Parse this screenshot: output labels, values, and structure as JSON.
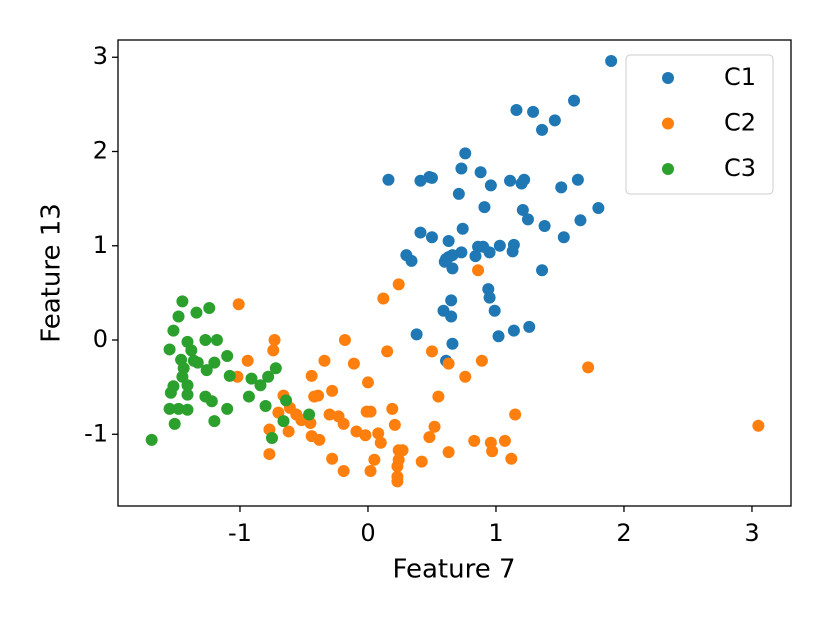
{
  "chart_data": {
    "type": "scatter",
    "x_label": "Feature 7",
    "y_label": "Feature 13",
    "xlim": [
      -1.953,
      3.305
    ],
    "ylim": [
      -1.761,
      3.183
    ],
    "xticks": [
      -1,
      0,
      1,
      2,
      3
    ],
    "yticks": [
      -1,
      0,
      1,
      2,
      3
    ],
    "legend": "upper right",
    "series": [
      {
        "name": "C1",
        "color": "#1f77b4",
        "x": [
          1.9,
          1.16,
          1.29,
          1.61,
          1.46,
          1.36,
          0.76,
          0.73,
          0.88,
          0.16,
          0.41,
          0.48,
          0.5,
          0.96,
          1.11,
          1.22,
          1.2,
          1.51,
          1.64,
          0.71,
          1.8,
          0.91,
          1.21,
          1.25,
          1.66,
          1.38,
          0.74,
          0.41,
          0.5,
          1.53,
          0.63,
          0.86,
          0.9,
          1.03,
          1.14,
          0.95,
          1.13,
          0.73,
          0.3,
          0.34,
          0.63,
          0.6,
          0.66,
          0.61,
          0.84,
          0.66,
          1.36,
          0.94,
          0.95,
          0.65,
          0.59,
          0.65,
          0.99,
          1.14,
          1.26,
          0.38,
          1.02,
          0.66,
          0.61
        ],
        "values": [
          2.96,
          2.44,
          2.42,
          2.54,
          2.33,
          2.23,
          1.98,
          1.82,
          1.78,
          1.7,
          1.69,
          1.73,
          1.72,
          1.64,
          1.69,
          1.7,
          1.66,
          1.62,
          1.7,
          1.55,
          1.4,
          1.41,
          1.38,
          1.28,
          1.27,
          1.21,
          1.18,
          1.14,
          1.09,
          1.09,
          1.05,
          0.99,
          0.99,
          1.0,
          1.01,
          0.93,
          0.94,
          0.93,
          0.9,
          0.84,
          0.88,
          0.83,
          0.9,
          0.86,
          0.89,
          0.76,
          0.74,
          0.54,
          0.45,
          0.42,
          0.31,
          0.25,
          0.31,
          0.1,
          0.14,
          0.06,
          0.04,
          -0.04,
          -0.22
        ]
      },
      {
        "name": "C2",
        "color": "#ff7f0e",
        "x": [
          -1.01,
          0.12,
          0.24,
          0.86,
          -0.73,
          -0.18,
          -0.74,
          0.15,
          0.5,
          -0.94,
          -0.34,
          -0.11,
          0.89,
          0.63,
          1.72,
          -0.44,
          -1.02,
          0.76,
          0.0,
          -0.28,
          -0.39,
          -0.42,
          -0.66,
          0.55,
          -0.61,
          0.19,
          -0.7,
          -0.56,
          -0.52,
          1.15,
          -0.3,
          -0.01,
          0.02,
          -0.23,
          -0.19,
          -0.45,
          0.52,
          0.21,
          3.05,
          -0.77,
          -0.09,
          -0.62,
          0.08,
          -0.02,
          -0.44,
          0.48,
          -0.38,
          0.83,
          0.96,
          1.07,
          0.1,
          0.24,
          0.27,
          0.63,
          0.97,
          -0.77,
          -0.28,
          0.05,
          1.12,
          0.24,
          0.42,
          0.23,
          -0.19,
          0.02,
          0.23,
          0.23
        ],
        "values": [
          0.38,
          0.44,
          0.59,
          0.74,
          0.0,
          0.0,
          -0.11,
          -0.12,
          -0.12,
          -0.22,
          -0.22,
          -0.25,
          -0.22,
          -0.25,
          -0.29,
          -0.38,
          -0.39,
          -0.39,
          -0.45,
          -0.54,
          -0.59,
          -0.6,
          -0.59,
          -0.6,
          -0.72,
          -0.73,
          -0.77,
          -0.79,
          -0.85,
          -0.79,
          -0.79,
          -0.76,
          -0.76,
          -0.81,
          -0.89,
          -0.88,
          -0.92,
          -0.9,
          -0.91,
          -0.95,
          -0.97,
          -0.97,
          -0.99,
          -1.01,
          -1.02,
          -1.03,
          -1.06,
          -1.07,
          -1.09,
          -1.07,
          -1.09,
          -1.17,
          -1.17,
          -1.19,
          -1.18,
          -1.21,
          -1.26,
          -1.27,
          -1.26,
          -1.27,
          -1.29,
          -1.34,
          -1.39,
          -1.39,
          -1.45,
          -1.5
        ]
      },
      {
        "name": "C3",
        "color": "#2ca02c",
        "x": [
          -1.45,
          -1.24,
          -1.48,
          -1.34,
          -1.52,
          -1.27,
          -1.18,
          -1.41,
          -1.55,
          -1.38,
          -1.1,
          -1.36,
          -1.46,
          -1.33,
          -1.2,
          -1.26,
          -1.44,
          -0.72,
          -1.08,
          -1.45,
          -0.91,
          -0.78,
          -1.41,
          -0.84,
          -1.52,
          -1.54,
          -1.41,
          -0.93,
          -1.27,
          -1.22,
          -0.64,
          -0.8,
          -1.55,
          -1.1,
          -1.48,
          -1.41,
          -0.46,
          -0.66,
          -1.2,
          -1.51,
          -0.75,
          -1.69
        ],
        "values": [
          0.41,
          0.34,
          0.25,
          0.29,
          0.1,
          0.0,
          0.0,
          -0.02,
          -0.1,
          -0.11,
          -0.17,
          -0.22,
          -0.21,
          -0.24,
          -0.24,
          -0.32,
          -0.3,
          -0.3,
          -0.38,
          -0.39,
          -0.41,
          -0.39,
          -0.48,
          -0.48,
          -0.49,
          -0.56,
          -0.58,
          -0.6,
          -0.6,
          -0.65,
          -0.64,
          -0.7,
          -0.73,
          -0.73,
          -0.73,
          -0.74,
          -0.79,
          -0.86,
          -0.86,
          -0.89,
          -1.04,
          -1.06
        ]
      }
    ]
  }
}
